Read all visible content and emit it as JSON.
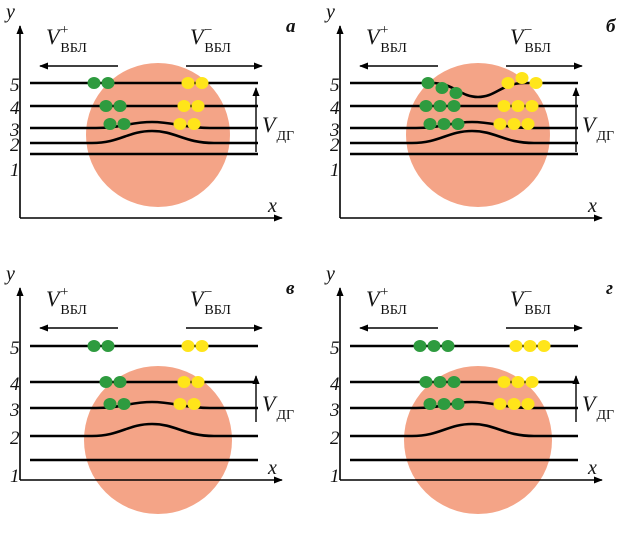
{
  "figure": {
    "axis_labels": {
      "x": "x",
      "y": "y"
    },
    "vector_labels": {
      "left": {
        "main": "V",
        "sup": "+",
        "sub": "ВБЛ"
      },
      "right": {
        "main": "V",
        "sup": "−",
        "sub": "ВБЛ"
      },
      "vertical": {
        "main": "V",
        "sub": "ДГ"
      }
    },
    "line_numbers": [
      "1",
      "2",
      "3",
      "4",
      "5"
    ],
    "colors": {
      "sphere": "#f4a487",
      "green_dot": "#2e9b3f",
      "yellow_dot": "#ffe51a",
      "line": "#000000"
    },
    "panels": [
      {
        "letter": "а",
        "sphere": "low",
        "line5": "straight",
        "dot_groups": [
          "line3",
          "line4",
          "line5"
        ],
        "dots_per_group": 2
      },
      {
        "letter": "б",
        "sphere": "low",
        "line5": "dipped",
        "dot_groups": [
          "line3",
          "line4",
          "line5"
        ],
        "dots_per_group": 3
      },
      {
        "letter": "в",
        "sphere": "high",
        "line5": "straight",
        "dot_groups": [
          "line3",
          "line4",
          "line5"
        ],
        "dots_per_group": 2
      },
      {
        "letter": "г",
        "sphere": "high",
        "line5": "straight",
        "dot_groups": [
          "line3",
          "line4",
          "line5"
        ],
        "dots_per_group": 3
      }
    ]
  }
}
